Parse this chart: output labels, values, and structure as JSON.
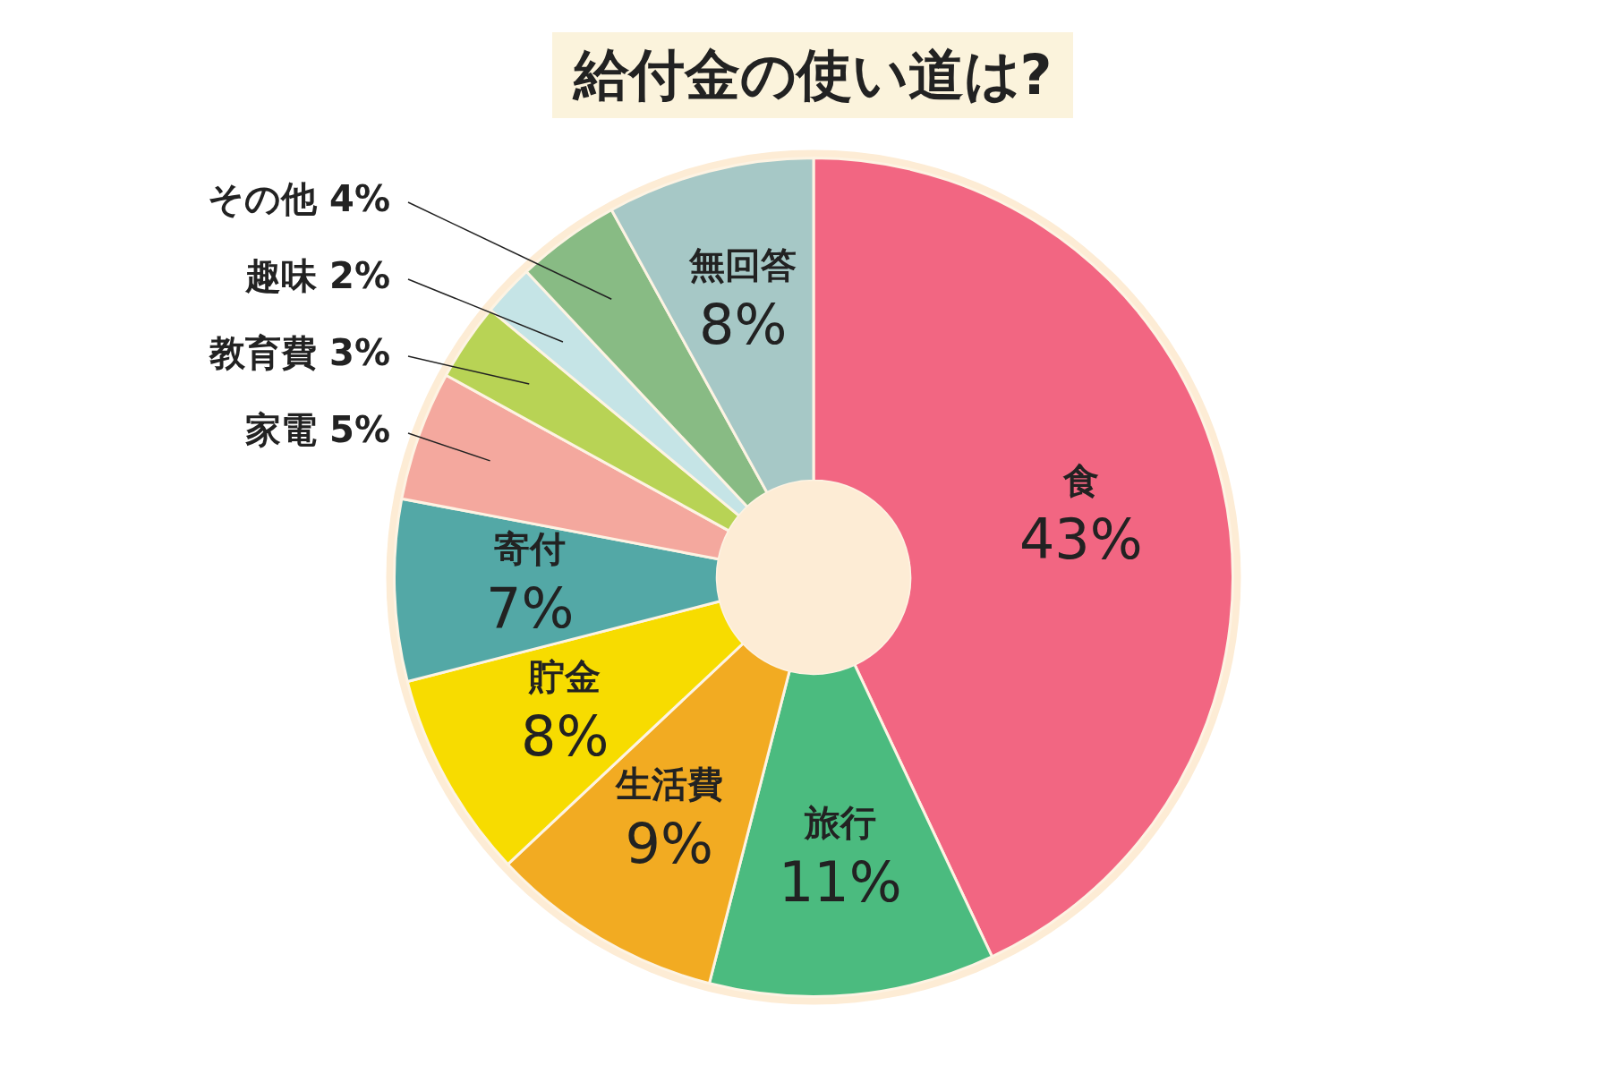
{
  "chart_data": {
    "type": "donut",
    "title": "給付金の使い道は?",
    "categories": [
      "食",
      "旅行",
      "生活費",
      "貯金",
      "寄付",
      "家電",
      "教育費",
      "趣味",
      "その他",
      "無回答"
    ],
    "values": [
      43,
      11,
      9,
      8,
      7,
      5,
      3,
      2,
      4,
      8
    ],
    "value_labels": [
      "43%",
      "11%",
      "9%",
      "8%",
      "7%",
      "5%",
      "3%",
      "2%",
      "4%",
      "8%"
    ],
    "colors": [
      "#f26682",
      "#4bbb7f",
      "#f2ab22",
      "#f7dc00",
      "#53a8a6",
      "#f4a89e",
      "#b8d355",
      "#c5e4e6",
      "#88bb84",
      "#a6c8c6"
    ],
    "legend": false
  }
}
